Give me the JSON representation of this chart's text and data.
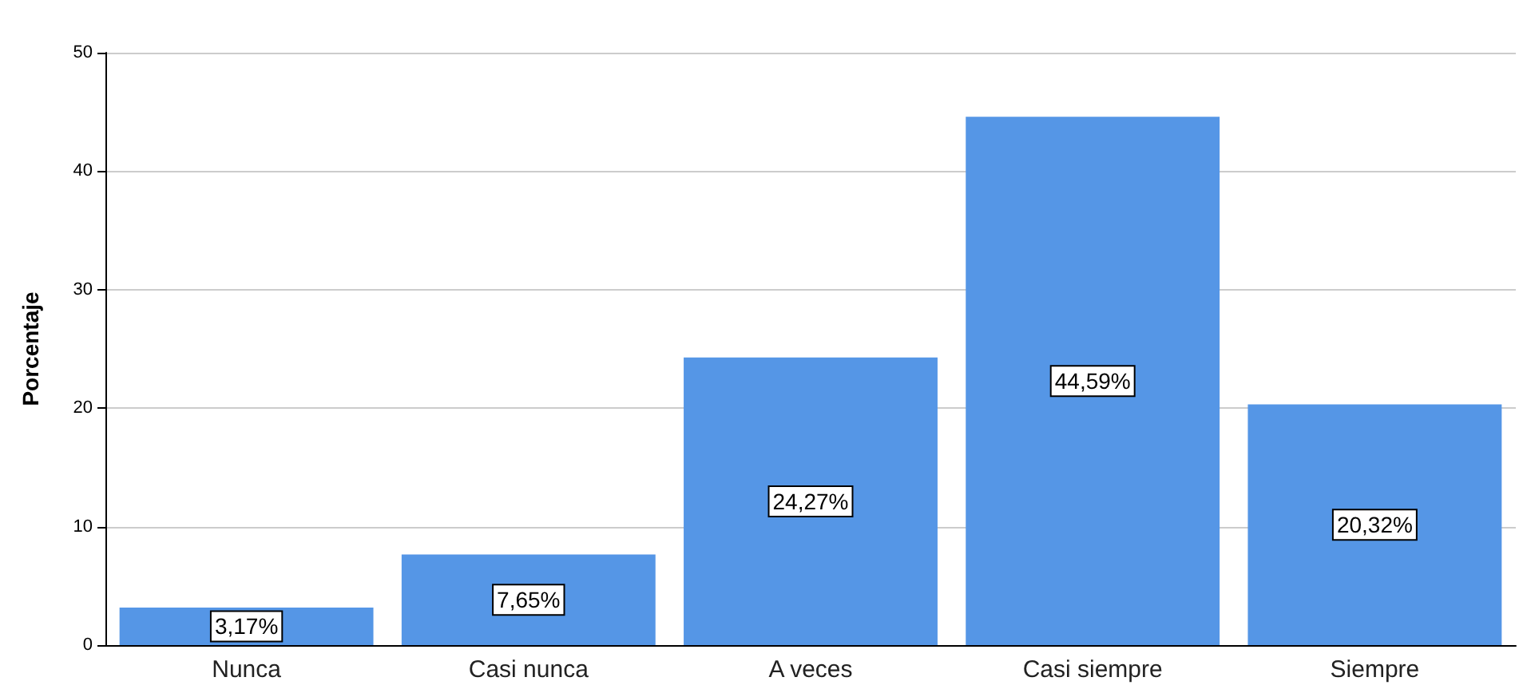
{
  "chart_data": {
    "type": "bar",
    "ylabel": "Porcentaje",
    "categories": [
      "Nunca",
      "Casi nunca",
      "A veces",
      "Casi siempre",
      "Siempre"
    ],
    "values": [
      3.17,
      7.65,
      24.27,
      44.59,
      20.32
    ],
    "value_labels": [
      "3,17%",
      "7,65%",
      "24,27%",
      "44,59%",
      "20,32%"
    ],
    "color": "#5596e6",
    "ylim": [
      0,
      50
    ],
    "yticks": [
      0,
      10,
      20,
      30,
      40,
      50
    ],
    "grid": "y"
  }
}
